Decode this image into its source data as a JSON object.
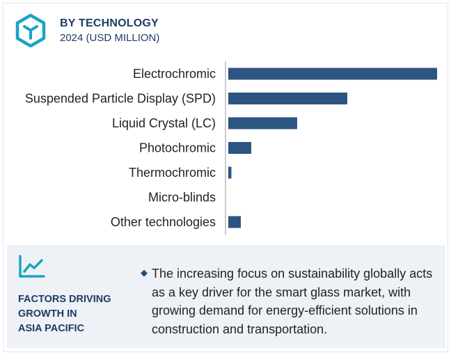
{
  "header": {
    "title": "BY TECHNOLOGY",
    "subtitle": "2024 (USD MILLION)"
  },
  "chart_data": {
    "type": "bar",
    "orientation": "horizontal",
    "categories": [
      "Electrochromic",
      "Suspended Particle Display (SPD)",
      "Liquid Crystal (LC)",
      "Photochromic",
      "Thermochromic",
      "Micro-blinds",
      "Other technologies"
    ],
    "values": [
      100,
      57,
      33,
      11,
      1.5,
      0,
      6
    ],
    "xlim": [
      0,
      100
    ],
    "grid": false,
    "legend": "none",
    "bar_color": "#2c5582"
  },
  "factors": {
    "title": "FACTORS DRIVING\nGROWTH IN\nASIA PACIFIC",
    "bullet_icon": "diamond-bullet",
    "text": "The increasing focus on sustainability globally acts as a key driver for the smart glass market, with growing demand for energy-efficient solutions in construction and transportation."
  },
  "colors": {
    "accent": "#1f3b64",
    "logo": "#1aa5c4",
    "bar": "#2c5582",
    "panel_bg": "#eef1f5"
  },
  "icons": {
    "logo": "cube-icon",
    "panel": "trend-line-icon"
  }
}
